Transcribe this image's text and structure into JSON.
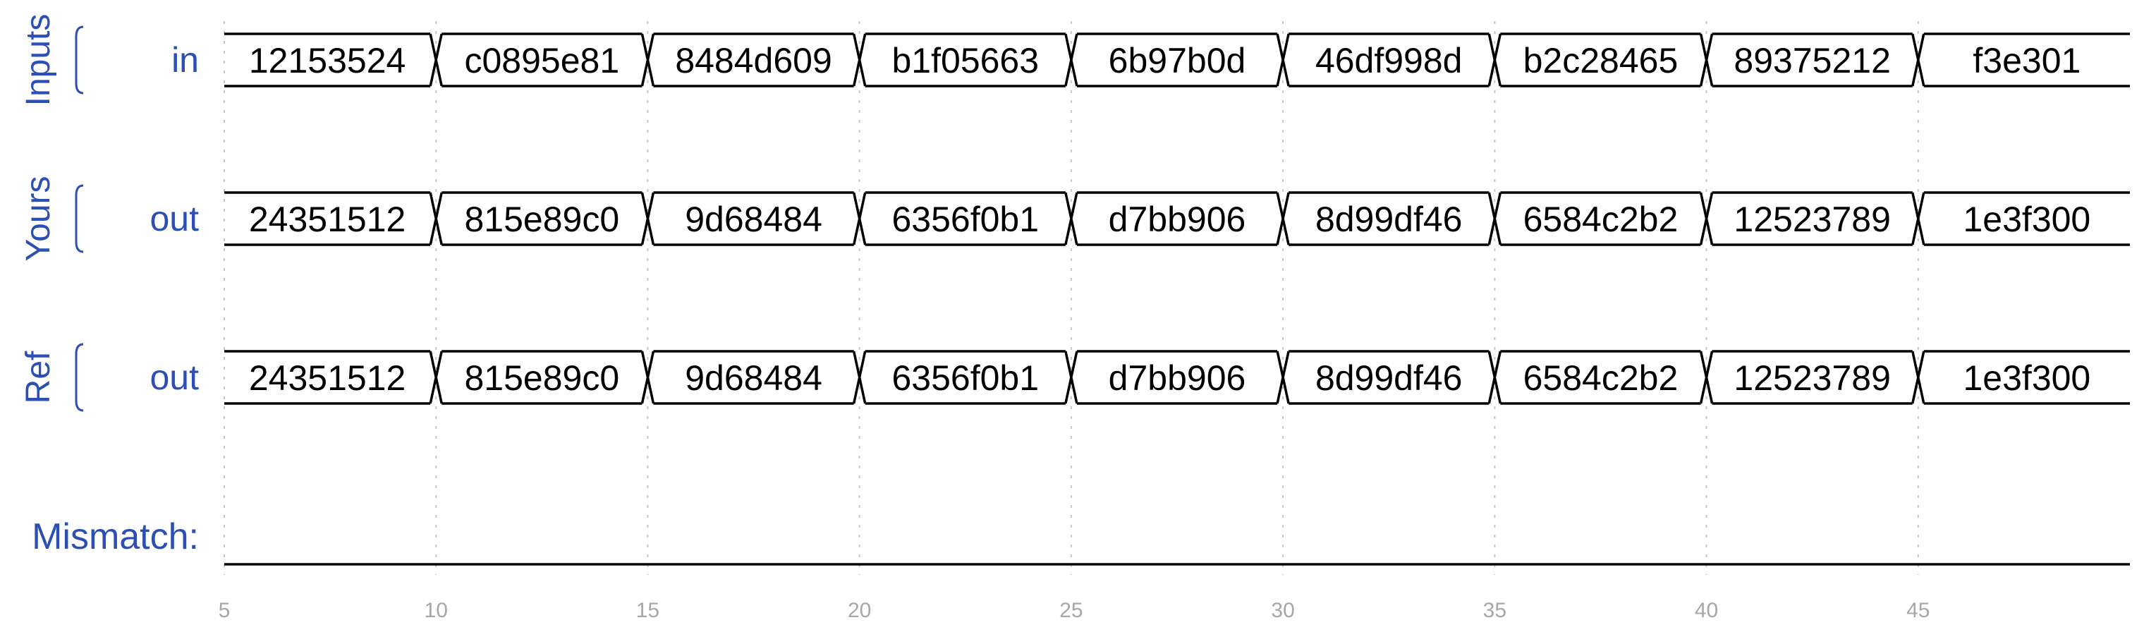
{
  "groups": [
    {
      "label": "Inputs",
      "signal": "in",
      "values": [
        "12153524",
        "c0895e81",
        "8484d609",
        "b1f05663",
        "6b97b0d",
        "46df998d",
        "b2c28465",
        "89375212",
        "f3e301"
      ]
    },
    {
      "label": "Yours",
      "signal": "out",
      "values": [
        "24351512",
        "815e89c0",
        "9d68484",
        "6356f0b1",
        "d7bb906",
        "8d99df46",
        "6584c2b2",
        "12523789",
        "1e3f300"
      ]
    },
    {
      "label": "Ref",
      "signal": "out",
      "values": [
        "24351512",
        "815e89c0",
        "9d68484",
        "6356f0b1",
        "d7bb906",
        "8d99df46",
        "6584c2b2",
        "12523789",
        "1e3f300"
      ]
    }
  ],
  "mismatch_label": "Mismatch:",
  "time_axis": {
    "start": 5,
    "end": 50,
    "segment_period": 5,
    "ticks": [
      5,
      10,
      15,
      20,
      25,
      30,
      35,
      40,
      45
    ]
  },
  "colors": {
    "label": "#2b4fb5",
    "wave": "#000000",
    "tick": "#a7a7a7",
    "grid": "#c7c7c7"
  }
}
